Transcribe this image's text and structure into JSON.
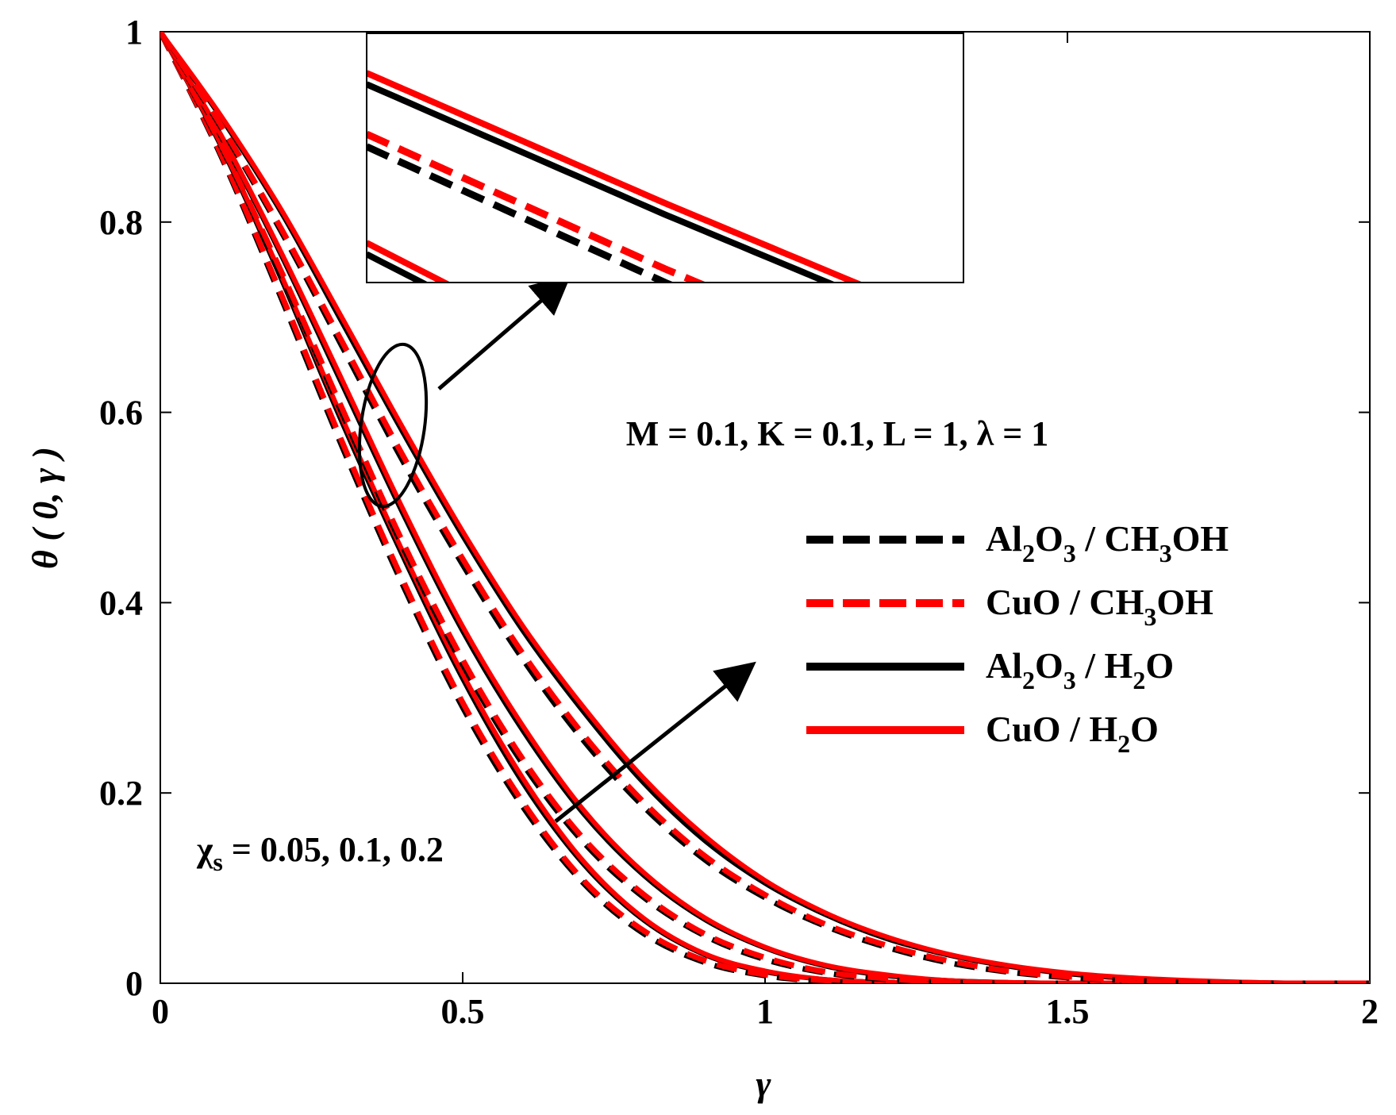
{
  "chart_data": {
    "type": "line",
    "title": "",
    "xlabel": "γ",
    "ylabel": "θ ( 0, γ )",
    "xlim": [
      0,
      2
    ],
    "ylim": [
      0,
      1
    ],
    "xticks": [
      {
        "value": 0,
        "label": "0"
      },
      {
        "value": 0.5,
        "label": "0.5"
      },
      {
        "value": 1,
        "label": "1"
      },
      {
        "value": 1.5,
        "label": "1.5"
      },
      {
        "value": 2,
        "label": "2"
      }
    ],
    "yticks": [
      {
        "value": 0,
        "label": "0"
      },
      {
        "value": 0.2,
        "label": "0.2"
      },
      {
        "value": 0.4,
        "label": "0.4"
      },
      {
        "value": 0.6,
        "label": "0.6"
      },
      {
        "value": 0.8,
        "label": "0.8"
      },
      {
        "value": 1,
        "label": "1"
      }
    ],
    "grid": false,
    "x": [
      0,
      0.1,
      0.2,
      0.3,
      0.4,
      0.5,
      0.6,
      0.7,
      0.8,
      0.9,
      1.0,
      1.1,
      1.2,
      1.3,
      1.4,
      1.5,
      1.6,
      1.7,
      1.8,
      1.9,
      2.0
    ],
    "series": [
      {
        "name": "Al2O3 / CH3OH",
        "chi_s": 0.05,
        "color": "#000000",
        "dash": true,
        "values": [
          1,
          0.87,
          0.72,
          0.565,
          0.42,
          0.29,
          0.185,
          0.105,
          0.052,
          0.022,
          0.008,
          0.002,
          0,
          0,
          0,
          0,
          0,
          0,
          0,
          0,
          0
        ]
      },
      {
        "name": "CuO / CH3OH",
        "chi_s": 0.05,
        "color": "#ff0000",
        "dash": true,
        "values": [
          1,
          0.872,
          0.724,
          0.57,
          0.425,
          0.295,
          0.19,
          0.108,
          0.055,
          0.024,
          0.009,
          0.003,
          0.001,
          0,
          0,
          0,
          0,
          0,
          0,
          0,
          0
        ]
      },
      {
        "name": "Al2O3 / H2O",
        "chi_s": 0.05,
        "color": "#000000",
        "dash": false,
        "values": [
          1,
          0.88,
          0.74,
          0.59,
          0.45,
          0.32,
          0.21,
          0.125,
          0.066,
          0.03,
          0.012,
          0.004,
          0.001,
          0,
          0,
          0,
          0,
          0,
          0,
          0,
          0
        ]
      },
      {
        "name": "CuO / H2O",
        "chi_s": 0.05,
        "color": "#ff0000",
        "dash": false,
        "values": [
          1,
          0.882,
          0.744,
          0.595,
          0.455,
          0.325,
          0.215,
          0.128,
          0.068,
          0.031,
          0.013,
          0.004,
          0.001,
          0,
          0,
          0,
          0,
          0,
          0,
          0,
          0
        ]
      },
      {
        "name": "Al2O3 / CH3OH",
        "chi_s": 0.1,
        "color": "#000000",
        "dash": true,
        "values": [
          1,
          0.88,
          0.745,
          0.6,
          0.46,
          0.335,
          0.23,
          0.148,
          0.09,
          0.05,
          0.025,
          0.011,
          0.004,
          0.001,
          0,
          0,
          0,
          0,
          0,
          0,
          0
        ]
      },
      {
        "name": "CuO / CH3OH",
        "chi_s": 0.1,
        "color": "#ff0000",
        "dash": true,
        "values": [
          1,
          0.882,
          0.748,
          0.605,
          0.465,
          0.34,
          0.235,
          0.152,
          0.093,
          0.052,
          0.027,
          0.012,
          0.005,
          0.001,
          0,
          0,
          0,
          0,
          0,
          0,
          0
        ]
      },
      {
        "name": "Al2O3 / H2O",
        "chi_s": 0.1,
        "color": "#000000",
        "dash": false,
        "values": [
          1,
          0.89,
          0.765,
          0.63,
          0.495,
          0.37,
          0.265,
          0.178,
          0.113,
          0.067,
          0.037,
          0.018,
          0.008,
          0.003,
          0.001,
          0,
          0,
          0,
          0,
          0,
          0
        ]
      },
      {
        "name": "CuO / H2O",
        "chi_s": 0.1,
        "color": "#ff0000",
        "dash": false,
        "values": [
          1,
          0.892,
          0.768,
          0.635,
          0.5,
          0.375,
          0.27,
          0.182,
          0.116,
          0.069,
          0.038,
          0.019,
          0.009,
          0.003,
          0.001,
          0,
          0,
          0,
          0,
          0,
          0
        ]
      },
      {
        "name": "Al2O3 / CH3OH",
        "chi_s": 0.2,
        "color": "#000000",
        "dash": true,
        "values": [
          1,
          0.9,
          0.79,
          0.67,
          0.55,
          0.44,
          0.34,
          0.255,
          0.185,
          0.13,
          0.09,
          0.06,
          0.038,
          0.022,
          0.012,
          0.006,
          0.003,
          0.001,
          0,
          0,
          0
        ]
      },
      {
        "name": "CuO / CH3OH",
        "chi_s": 0.2,
        "color": "#ff0000",
        "dash": true,
        "values": [
          1,
          0.902,
          0.793,
          0.675,
          0.556,
          0.446,
          0.346,
          0.261,
          0.19,
          0.134,
          0.093,
          0.062,
          0.04,
          0.024,
          0.013,
          0.007,
          0.003,
          0.001,
          0,
          0,
          0
        ]
      },
      {
        "name": "Al2O3 / H2O",
        "chi_s": 0.2,
        "color": "#000000",
        "dash": false,
        "values": [
          1,
          0.91,
          0.81,
          0.695,
          0.58,
          0.47,
          0.37,
          0.285,
          0.21,
          0.15,
          0.105,
          0.072,
          0.047,
          0.03,
          0.018,
          0.01,
          0.005,
          0.002,
          0.001,
          0,
          0
        ]
      },
      {
        "name": "CuO / H2O",
        "chi_s": 0.2,
        "color": "#ff0000",
        "dash": false,
        "values": [
          1,
          0.912,
          0.813,
          0.7,
          0.585,
          0.475,
          0.375,
          0.29,
          0.215,
          0.155,
          0.108,
          0.074,
          0.049,
          0.031,
          0.019,
          0.011,
          0.006,
          0.003,
          0.001,
          0,
          0
        ]
      }
    ],
    "legend": {
      "placement": "right",
      "entries": [
        {
          "text": "Al2O3 / CH3OH",
          "color": "#000000",
          "dash": true
        },
        {
          "text": "CuO / CH3OH",
          "color": "#ff0000",
          "dash": true
        },
        {
          "text": "Al2O3 / H2O",
          "color": "#000000",
          "dash": false
        },
        {
          "text": "CuO / H2O",
          "color": "#ff0000",
          "dash": false
        }
      ]
    },
    "annotations": {
      "params": "M = 0.1, K = 0.1, L = 1, λ = 1",
      "chi_label": "χ",
      "chi_sub": "s",
      "chi_values": " = 0.05, 0.1, 0.2"
    },
    "inset": {
      "description": "zoomed view of the circled region",
      "xlim": [
        0.35,
        0.45
      ],
      "ylim": [
        0.55,
        0.66
      ]
    }
  }
}
